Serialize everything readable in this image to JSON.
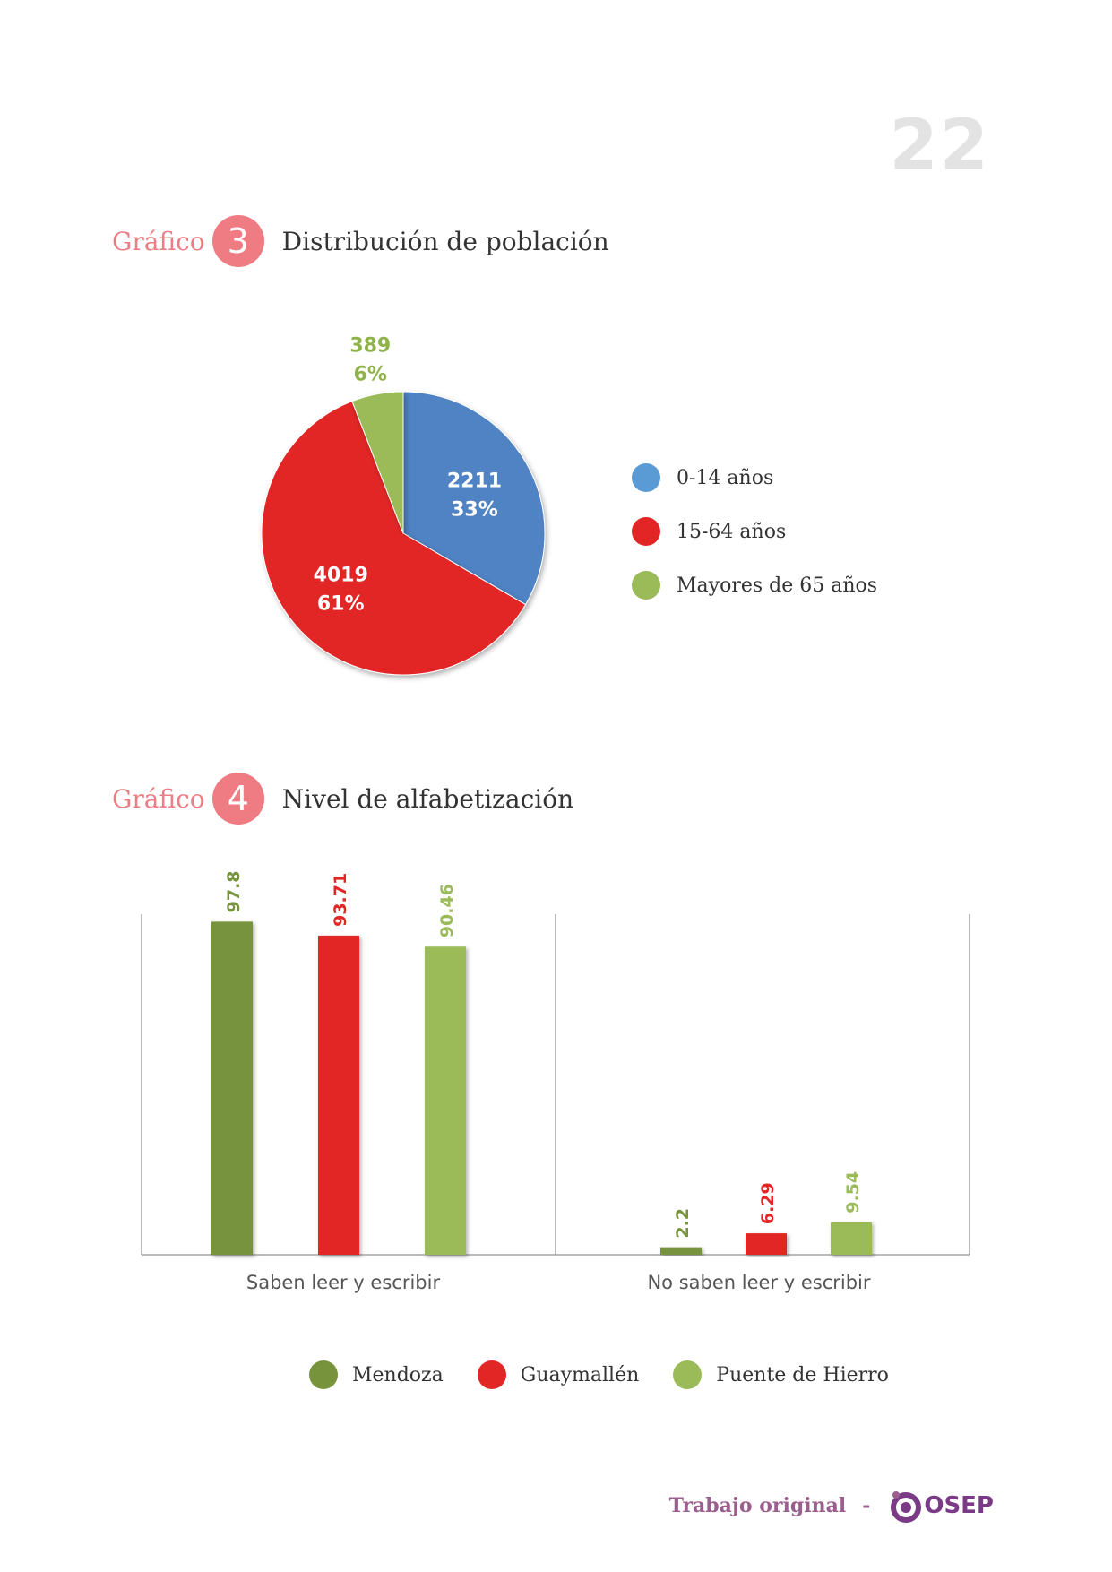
{
  "page_number": "22",
  "chart3": {
    "prefix": "Gráfico",
    "number": "3",
    "title": "Distribución de población"
  },
  "chart4": {
    "prefix": "Gráfico",
    "number": "4",
    "title": "Nivel de alfabetización"
  },
  "footer": {
    "text": "Trabajo original",
    "dash": "-",
    "logo_text": "OSEP",
    "logo_icon": "osep-logo-icon"
  },
  "chart_data": [
    {
      "type": "pie",
      "title": "Distribución de población",
      "slices": [
        {
          "label": "0-14 años",
          "value": 2211,
          "percent": "33%",
          "color": "#4f83c3",
          "legend_color": "#5b9bd5",
          "label_color": "#ffffff"
        },
        {
          "label": "15-64 años",
          "value": 4019,
          "percent": "61%",
          "color": "#e22626",
          "legend_color": "#e22626",
          "label_color": "#ffffff"
        },
        {
          "label": "Mayores de 65 años",
          "value": 389,
          "percent": "6%",
          "color": "#9bbb59",
          "legend_color": "#9bbb59",
          "label_color": "#8fb24a"
        }
      ],
      "legend_position": "right"
    },
    {
      "type": "bar",
      "title": "Nivel de alfabetización",
      "categories": [
        "Saben leer y escribir",
        "No saben leer y escribir"
      ],
      "series": [
        {
          "name": "Mendoza",
          "values": [
            97.8,
            2.2
          ],
          "color": "#77933c"
        },
        {
          "name": "Guaymallén",
          "values": [
            93.71,
            6.29
          ],
          "color": "#e22626"
        },
        {
          "name": "Puente de Hierro",
          "values": [
            90.46,
            9.54
          ],
          "color": "#9bbb59"
        }
      ],
      "ylim": [
        0,
        100
      ],
      "value_labels": "rotated",
      "legend_position": "bottom"
    }
  ]
}
